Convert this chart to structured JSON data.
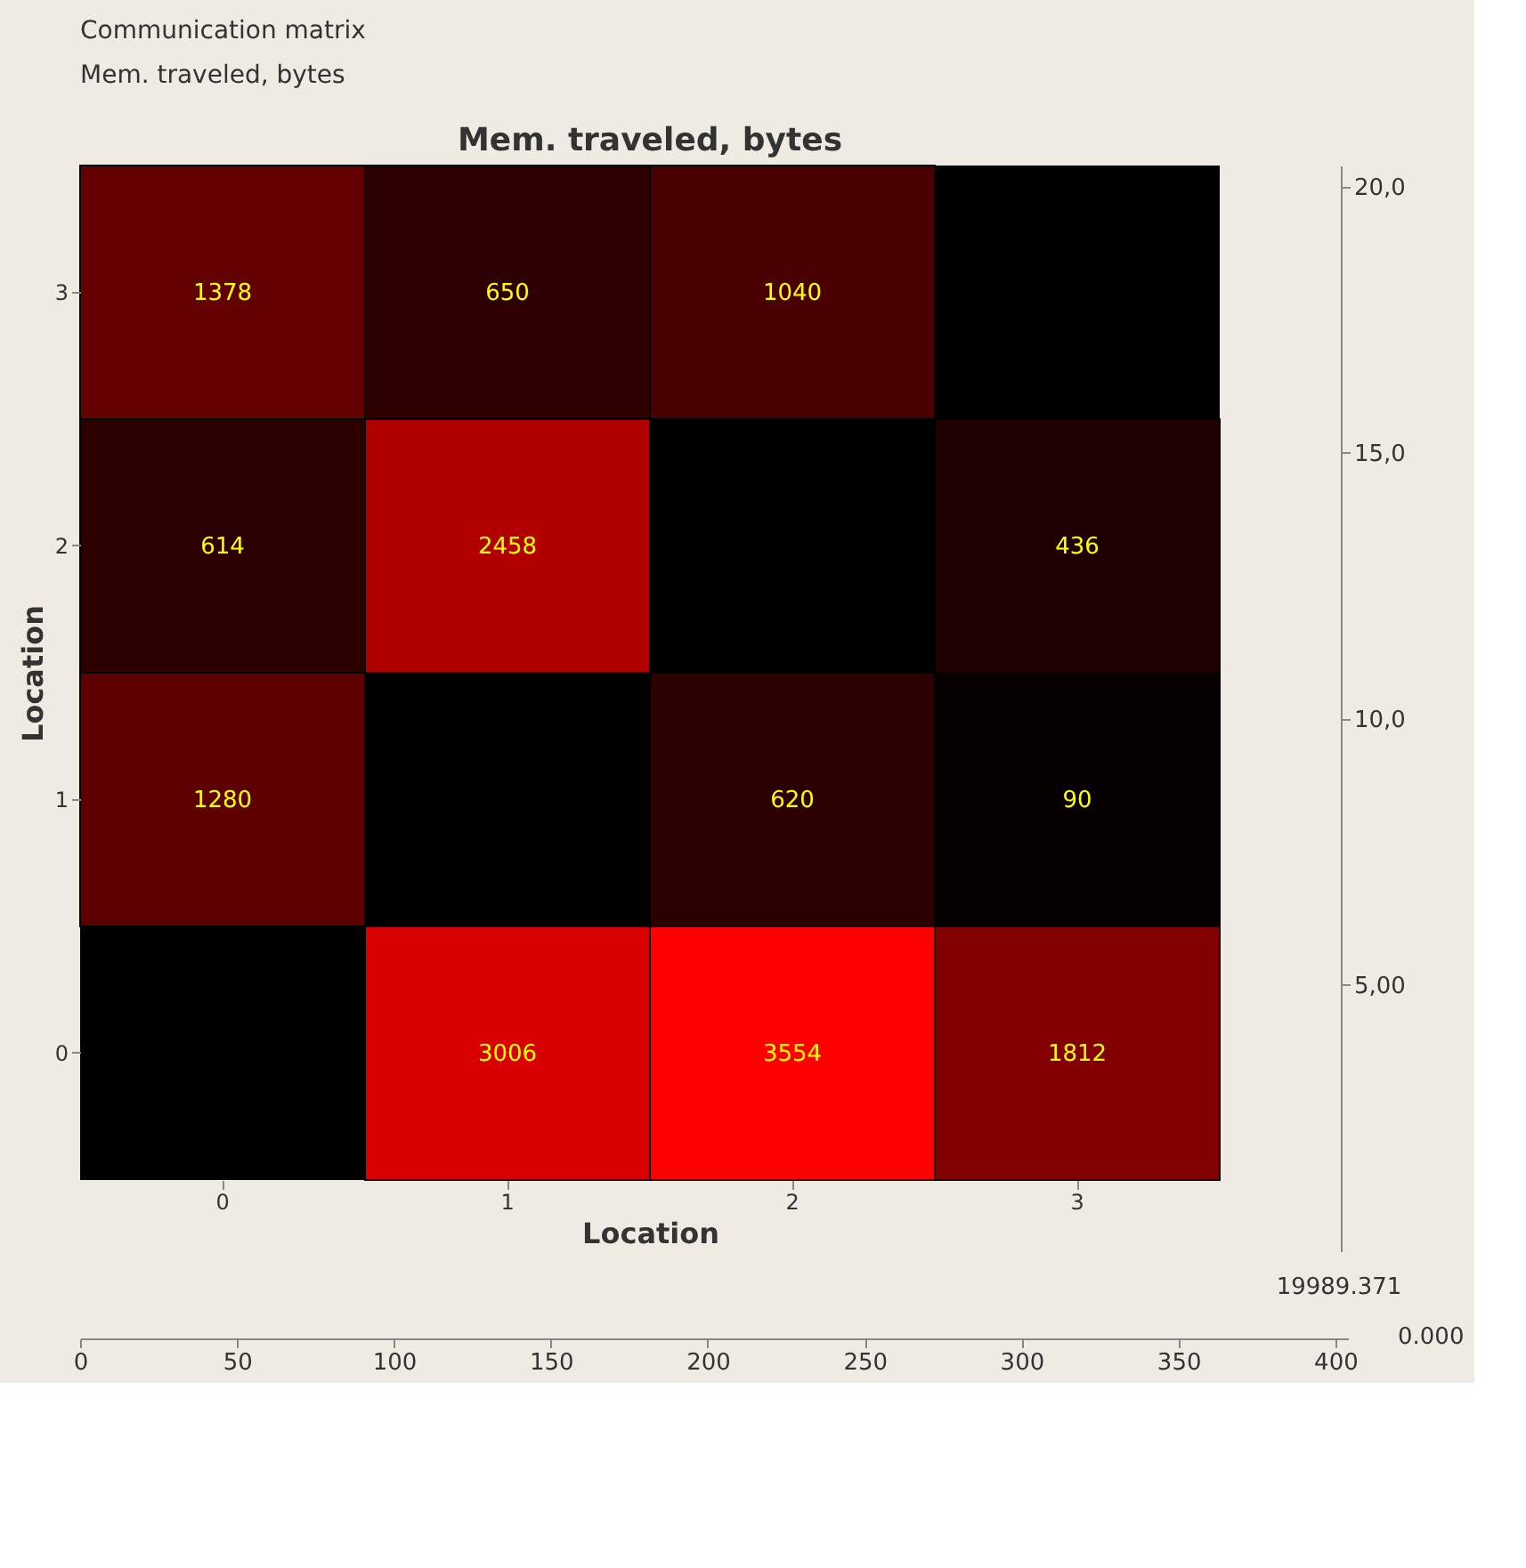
{
  "chart_data": {
    "type": "heatmap",
    "title": "Mem. traveled, bytes",
    "xlabel": "Location",
    "ylabel": "Location",
    "categories": [
      "0",
      "1",
      "2",
      "3"
    ],
    "y_categories": [
      "3",
      "2",
      "1",
      "0"
    ],
    "cells": [
      [
        1378,
        650,
        1040,
        null
      ],
      [
        614,
        2458,
        null,
        436
      ],
      [
        1280,
        null,
        620,
        90
      ],
      [
        null,
        3006,
        3554,
        1812
      ]
    ],
    "data_labels": true,
    "annotations": [
      "Communication matrix",
      "Mem. traveled, bytes",
      "19989.371",
      "0.000"
    ],
    "y2lim": [
      0,
      20.4
    ],
    "y2ticks": [
      {
        "value": 5,
        "label": "5,00"
      },
      {
        "value": 10,
        "label": "10,0"
      },
      {
        "value": 15,
        "label": "15,0"
      },
      {
        "value": 20,
        "label": "20,0"
      }
    ],
    "x2lim": [
      0,
      404
    ],
    "x2ticks": [
      0,
      50,
      100,
      150,
      200,
      250,
      300,
      350,
      400
    ]
  }
}
